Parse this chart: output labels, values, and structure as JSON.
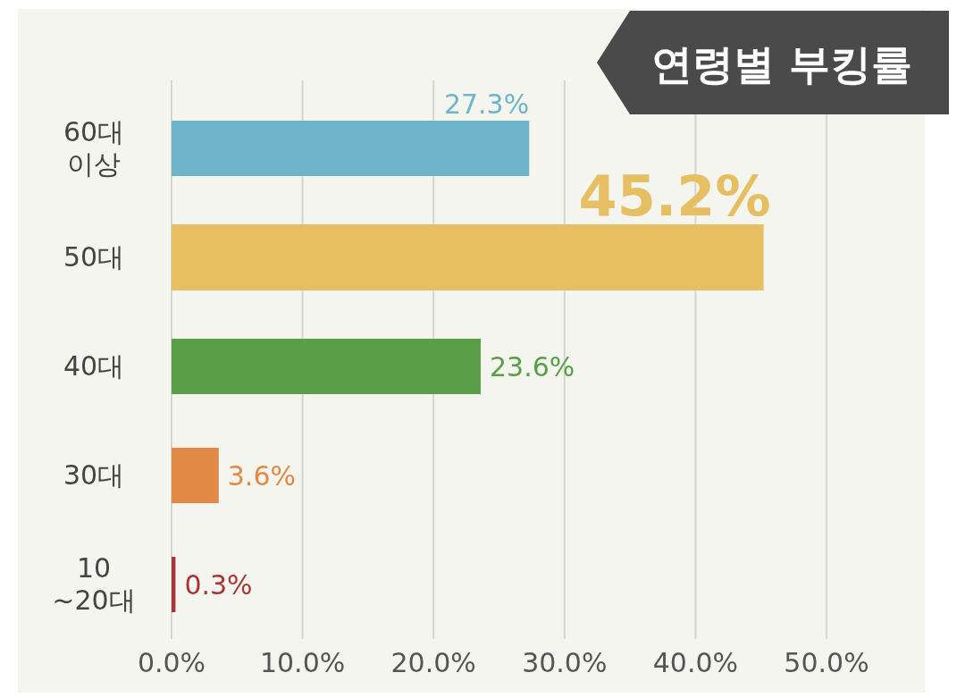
{
  "chart_data": {
    "type": "bar",
    "orientation": "horizontal",
    "title": "연령별 부킹률",
    "categories": [
      "60대\n이상",
      "50대",
      "40대",
      "30대",
      "10\n~20대"
    ],
    "values": [
      27.3,
      45.2,
      23.6,
      3.6,
      0.3
    ],
    "colors": [
      "#6fb4c9",
      "#e6bf63",
      "#5b9e48",
      "#e08a45",
      "#a8353a"
    ],
    "value_labels": [
      "27.3%",
      "45.2%",
      "23.6%",
      "3.6%",
      "0.3%"
    ],
    "xlim": [
      0,
      50
    ],
    "xticks": [
      {
        "value": 0,
        "label": "0.0%"
      },
      {
        "value": 10,
        "label": "10.0%"
      },
      {
        "value": 20,
        "label": "20.0%"
      },
      {
        "value": 30,
        "label": "30.0%"
      },
      {
        "value": 40,
        "label": "40.0%"
      },
      {
        "value": 50,
        "label": "50.0%"
      }
    ],
    "grid": "x"
  }
}
